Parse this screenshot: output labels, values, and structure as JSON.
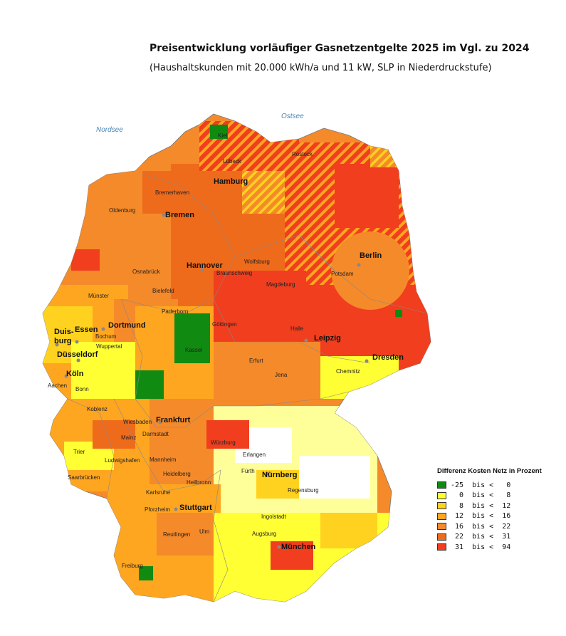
{
  "title": "Preisentwicklung vorläufiger Gasnetzentgelte 2025 im Vgl. zu 2024",
  "subtitle": "(Haushaltskunden mit 20.000 kWh/a und 11 kW, SLP in Niederdruckstufe)",
  "seas": {
    "north": "Nordsee",
    "baltic": "Ostsee"
  },
  "legend": {
    "title": "Differenz Kosten Netz in Prozent",
    "items": [
      {
        "label": "-25  bis <   0",
        "color": "#118a11"
      },
      {
        "label": "  0  bis <   8",
        "color": "#ffff33"
      },
      {
        "label": "  8  bis <  12",
        "color": "#ffd21f"
      },
      {
        "label": " 12  bis <  16",
        "color": "#ffa620"
      },
      {
        "label": " 16  bis <  22",
        "color": "#f58a2a"
      },
      {
        "label": " 22  bis <  31",
        "color": "#ef6b1c"
      },
      {
        "label": " 31  bis <  94",
        "color": "#f03e1e"
      }
    ]
  },
  "cities_big": [
    "Hamburg",
    "Bremen",
    "Hannover",
    "Berlin",
    "Dortmund",
    "Essen",
    "Duis-",
    "burg",
    "Düsseldorf",
    "Köln",
    "Leipzig",
    "Dresden",
    "Frankfurt",
    "Nürnberg",
    "Stuttgart",
    "München"
  ],
  "cities_small": [
    "Kiel",
    "Lübeck",
    "Rostock",
    "Bremerhaven",
    "Oldenburg",
    "Osnabrück",
    "Bielefeld",
    "Münster",
    "Wolfsburg",
    "Braunschweig",
    "Magdeburg",
    "Potsdam",
    "Paderborn",
    "Göttingen",
    "Halle",
    "Bochum",
    "Wuppertal",
    "Kassel",
    "Erfurt",
    "Jena",
    "Chemnitz",
    "Bonn",
    "Aachen",
    "Koblenz",
    "Wiesbaden",
    "Darmstadt",
    "Mainz",
    "Würzburg",
    "Erlangen",
    "Fürth",
    "Trier",
    "Ludwigshafen",
    "Mannheim",
    "Heidelberg",
    "Heilbronn",
    "Saarbrücken",
    "Karlsruhe",
    "Regensburg",
    "Pforzheim",
    "Ingolstadt",
    "Reutlingen",
    "Ulm",
    "Augsburg",
    "Freiburg"
  ]
}
